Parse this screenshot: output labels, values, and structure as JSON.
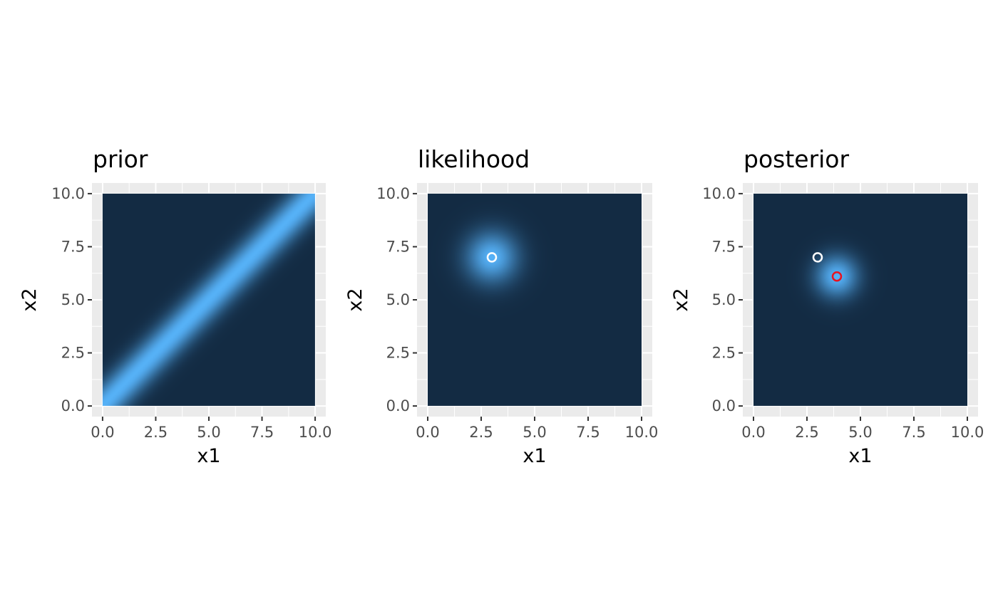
{
  "chart_data": [
    {
      "type": "heatmap",
      "title": "prior",
      "xlabel": "x1",
      "ylabel": "x2",
      "xlim": [
        0,
        10
      ],
      "ylim": [
        0,
        10
      ],
      "x_ticks": [
        "0.0",
        "2.5",
        "5.0",
        "7.5",
        "10.0"
      ],
      "y_ticks": [
        "0.0",
        "2.5",
        "5.0",
        "7.5",
        "10.0"
      ],
      "grid": true,
      "density": {
        "shape": "ridge",
        "line": "x2 = x1",
        "sd_across": 0.55
      },
      "points": []
    },
    {
      "type": "heatmap",
      "title": "likelihood",
      "xlabel": "x1",
      "ylabel": "x2",
      "xlim": [
        0,
        10
      ],
      "ylim": [
        0,
        10
      ],
      "x_ticks": [
        "0.0",
        "2.5",
        "5.0",
        "7.5",
        "10.0"
      ],
      "y_ticks": [
        "0.0",
        "2.5",
        "5.0",
        "7.5",
        "10.0"
      ],
      "grid": true,
      "density": {
        "shape": "gaussian",
        "center": [
          3,
          7
        ],
        "sd": 0.85
      },
      "points": [
        {
          "x": 3.0,
          "y": 7.0,
          "color": "#ffffff"
        }
      ]
    },
    {
      "type": "heatmap",
      "title": "posterior",
      "xlabel": "x1",
      "ylabel": "x2",
      "xlim": [
        0,
        10
      ],
      "ylim": [
        0,
        10
      ],
      "x_ticks": [
        "0.0",
        "2.5",
        "5.0",
        "7.5",
        "10.0"
      ],
      "y_ticks": [
        "0.0",
        "2.5",
        "5.0",
        "7.5",
        "10.0"
      ],
      "grid": true,
      "density": {
        "shape": "gaussian",
        "center": [
          3.9,
          6.1
        ],
        "sd": 0.7
      },
      "points": [
        {
          "x": 3.0,
          "y": 7.0,
          "color": "#ffffff"
        },
        {
          "x": 3.9,
          "y": 6.1,
          "color": "#e8131f"
        }
      ]
    }
  ],
  "colors": {
    "low": "#132b43",
    "high": "#56b1f7",
    "panel_bg": "#ebebeb",
    "grid": "#ffffff"
  }
}
